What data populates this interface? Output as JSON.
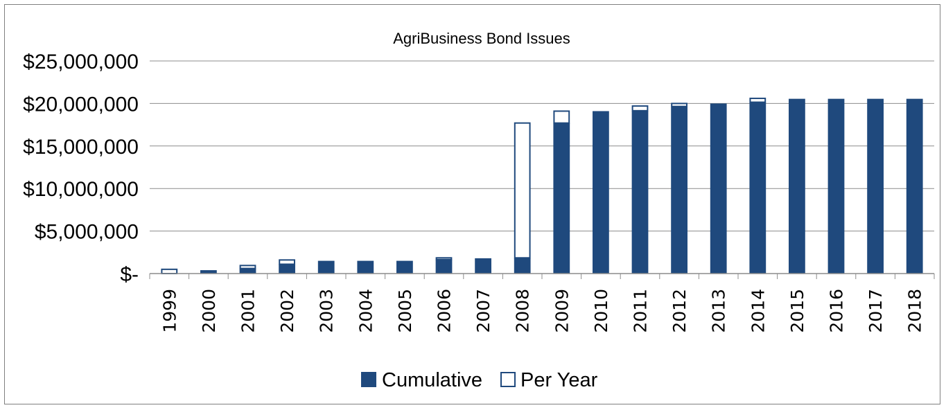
{
  "chart_data": {
    "type": "bar",
    "stacked": true,
    "title": "AgriBusiness Bond Issues",
    "xlabel": "",
    "ylabel": "",
    "ylim": [
      0,
      25000000
    ],
    "y_ticks": [
      0,
      5000000,
      10000000,
      15000000,
      20000000,
      25000000
    ],
    "y_tick_labels": [
      "$-",
      "$5,000,000",
      "$10,000,000",
      "$15,000,000",
      "$20,000,000",
      "$25,000,000"
    ],
    "grid": true,
    "legend_position": "bottom",
    "categories": [
      "1999",
      "2000",
      "2001",
      "2002",
      "2003",
      "2004",
      "2005",
      "2006",
      "2007",
      "2008",
      "2009",
      "2010",
      "2011",
      "2012",
      "2013",
      "2014",
      "2015",
      "2016",
      "2017",
      "2018"
    ],
    "series": [
      {
        "name": "Cumulative",
        "color": "#1f497d",
        "filled": true,
        "values": [
          0,
          400000,
          600000,
          1100000,
          1500000,
          1500000,
          1500000,
          1650000,
          1800000,
          1850000,
          17700000,
          19100000,
          19150000,
          19650000,
          20000000,
          20150000,
          20550000,
          20550000,
          20550000,
          20550000
        ]
      },
      {
        "name": "Per Year",
        "color": "#1f497d",
        "filled": false,
        "values": [
          500000,
          0,
          350000,
          500000,
          0,
          0,
          0,
          200000,
          0,
          15850000,
          1400000,
          0,
          550000,
          350000,
          0,
          450000,
          0,
          0,
          0,
          0
        ]
      }
    ]
  }
}
